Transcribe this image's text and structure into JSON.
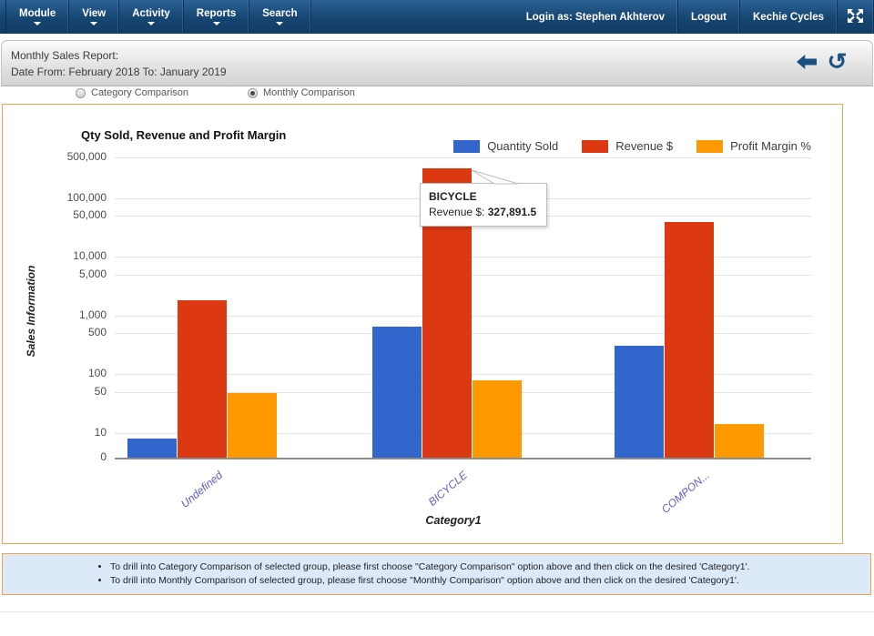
{
  "nav": {
    "menus": [
      {
        "label": "Module"
      },
      {
        "label": "View"
      },
      {
        "label": "Activity"
      },
      {
        "label": "Reports"
      },
      {
        "label": "Search"
      }
    ],
    "login_label": "Login as: Stephen Akhterov",
    "logout_label": "Logout",
    "brand_label": "Kechie Cycles"
  },
  "header": {
    "title_line1": "Monthly Sales Report:",
    "title_line2": "Date From: February 2018 To: January 2019"
  },
  "filters": {
    "options": [
      {
        "label": "Category Comparison",
        "selected": false
      },
      {
        "label": "Monthly Comparison",
        "selected": true
      }
    ]
  },
  "chart_data": {
    "type": "bar",
    "title": "Qty Sold, Revenue and Profit Margin",
    "xlabel": "Category1",
    "ylabel": "Sales Information",
    "categories": [
      "Undefined",
      "BICYCLE",
      "COMPON..."
    ],
    "series": [
      {
        "name": "Quantity Sold",
        "color": "#3366cc",
        "values": [
          8,
          650,
          300
        ]
      },
      {
        "name": "Revenue $",
        "color": "#dc3912",
        "values": [
          1800,
          327891.5,
          40000
        ]
      },
      {
        "name": "Profit Margin %",
        "color": "#ff9900",
        "values": [
          47,
          79,
          14
        ]
      }
    ],
    "y_scale": "log",
    "y_ticks": [
      0,
      10,
      50,
      100,
      500,
      1000,
      5000,
      10000,
      50000,
      100000,
      500000
    ],
    "grid": true,
    "legend_position": "top-right"
  },
  "tooltip": {
    "category": "BICYCLE",
    "label": "Revenue $:",
    "value": "327,891.5"
  },
  "notes": [
    "To drill into Category Comparison of selected group, please first choose \"Category Comparison\" option above and then click on the desired 'Category1'.",
    "To drill into Monthly Comparison of selected group, please first choose \"Monthly Comparison\" option above and then click on the desired 'Category1'."
  ]
}
